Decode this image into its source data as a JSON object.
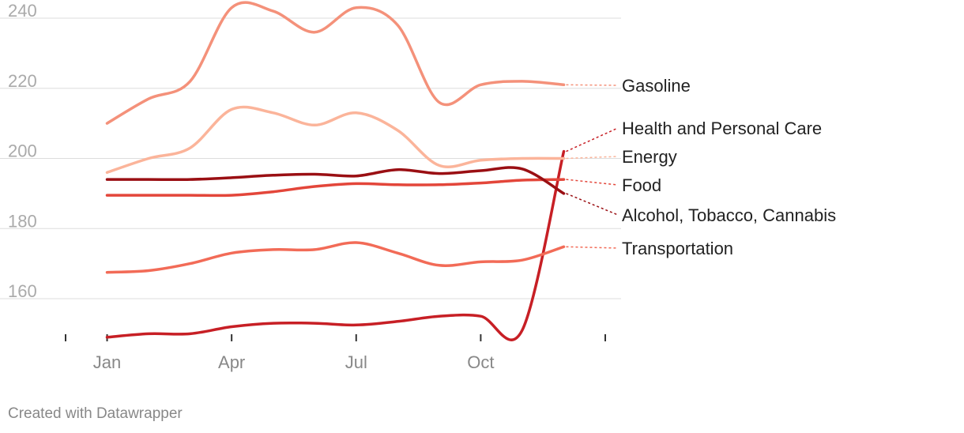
{
  "chart_data": {
    "type": "line",
    "title": "",
    "xlabel": "",
    "ylabel": "",
    "x": [
      1,
      2,
      3,
      4,
      5,
      6,
      7,
      8,
      9,
      10,
      11,
      12
    ],
    "xlim": [
      0,
      13
    ],
    "ylim": [
      150,
      245
    ],
    "yticks": [
      160,
      180,
      200,
      220,
      240
    ],
    "ytick_labels": [
      "160",
      "180",
      "200",
      "220",
      "240"
    ],
    "xticks": [
      1,
      4,
      7,
      10
    ],
    "xtick_labels": [
      "Jan",
      "Apr",
      "Jul",
      "Oct"
    ],
    "series": [
      {
        "name": "Gasoline",
        "color": "#f4917a",
        "values": [
          210,
          217,
          222,
          243,
          242,
          236,
          243,
          238,
          216,
          221,
          222,
          221
        ]
      },
      {
        "name": "Health and Personal Care",
        "color": "#c71f25",
        "values": [
          149,
          150,
          150,
          152,
          153,
          153,
          152.5,
          153.5,
          155,
          155,
          151,
          202
        ]
      },
      {
        "name": "Energy",
        "color": "#fbb49a",
        "values": [
          196,
          200,
          203,
          214,
          213,
          209.5,
          213,
          208,
          198,
          199.5,
          200,
          200
        ]
      },
      {
        "name": "Food",
        "color": "#e3463a",
        "values": [
          189.5,
          189.5,
          189.5,
          189.5,
          190.5,
          192,
          192.8,
          192.5,
          192.5,
          193,
          193.8,
          194
        ]
      },
      {
        "name": "Alcohol, Tobacco, Cannabis",
        "color": "#9a0f13",
        "values": [
          194,
          194,
          194,
          194.5,
          195.2,
          195.5,
          195,
          196.8,
          195.7,
          196.5,
          197,
          190
        ]
      },
      {
        "name": "Transportation",
        "color": "#f26b57",
        "values": [
          167.5,
          168,
          170,
          173,
          174,
          174,
          176,
          173,
          169.5,
          170.5,
          171,
          174.8
        ]
      }
    ],
    "label_order": [
      "Gasoline",
      "Health and Personal Care",
      "Energy",
      "Food",
      "Alcohol, Tobacco, Cannabis",
      "Transportation"
    ]
  },
  "footer": {
    "credit": "Created with Datawrapper"
  }
}
